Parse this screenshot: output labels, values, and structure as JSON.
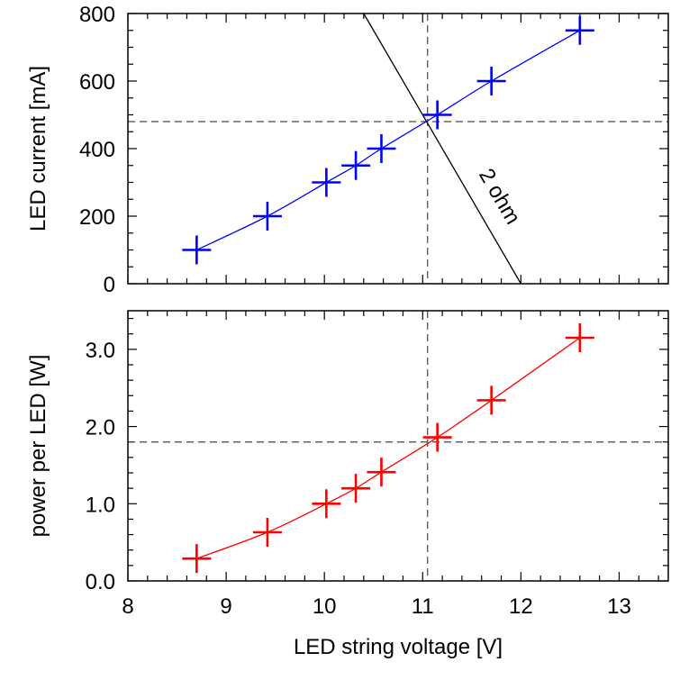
{
  "chart_data": [
    {
      "type": "line",
      "ylabel": "LED current [mA]",
      "xlim": [
        8,
        13.5
      ],
      "ylim": [
        0,
        800
      ],
      "yticks": [
        0,
        200,
        400,
        600,
        800
      ],
      "ytick_labels": [
        "0",
        "200",
        "400",
        "600",
        "800"
      ],
      "y_minor_step": 50,
      "grid": false,
      "series": [
        {
          "color": "#0000ff",
          "marker": "plus",
          "x": [
            8.7,
            9.42,
            10.02,
            10.32,
            10.58,
            11.15,
            11.7,
            12.6
          ],
          "y": [
            100,
            200,
            300,
            350,
            400,
            500,
            600,
            750
          ]
        }
      ],
      "annotations": {
        "load_line": {
          "label": "2 ohm",
          "x": [
            10.4,
            12.0
          ],
          "y": [
            800,
            0
          ],
          "color": "#000000"
        },
        "vline_x": 11.05,
        "hline_y": 480
      }
    },
    {
      "type": "line",
      "xlabel": "LED string voltage [V]",
      "ylabel": "power per LED [W]",
      "xlim": [
        8,
        13.5
      ],
      "ylim": [
        0,
        3.5
      ],
      "xticks": [
        8,
        9,
        10,
        11,
        12,
        13
      ],
      "xtick_labels": [
        "8",
        "9",
        "10",
        "11",
        "12",
        "13"
      ],
      "x_minor_step": 0.2,
      "yticks": [
        0,
        1,
        2,
        3
      ],
      "ytick_labels": [
        "0.0",
        "1.0",
        "2.0",
        "3.0"
      ],
      "y_minor_step": 0.2,
      "grid": false,
      "series": [
        {
          "color": "#ff0000",
          "marker": "plus",
          "x": [
            8.7,
            9.42,
            10.02,
            10.32,
            10.58,
            11.15,
            11.7,
            12.6
          ],
          "y": [
            0.29,
            0.63,
            1.0,
            1.2,
            1.41,
            1.86,
            2.34,
            3.15
          ]
        }
      ],
      "annotations": {
        "vline_x": 11.05,
        "hline_y": 1.8
      }
    }
  ]
}
